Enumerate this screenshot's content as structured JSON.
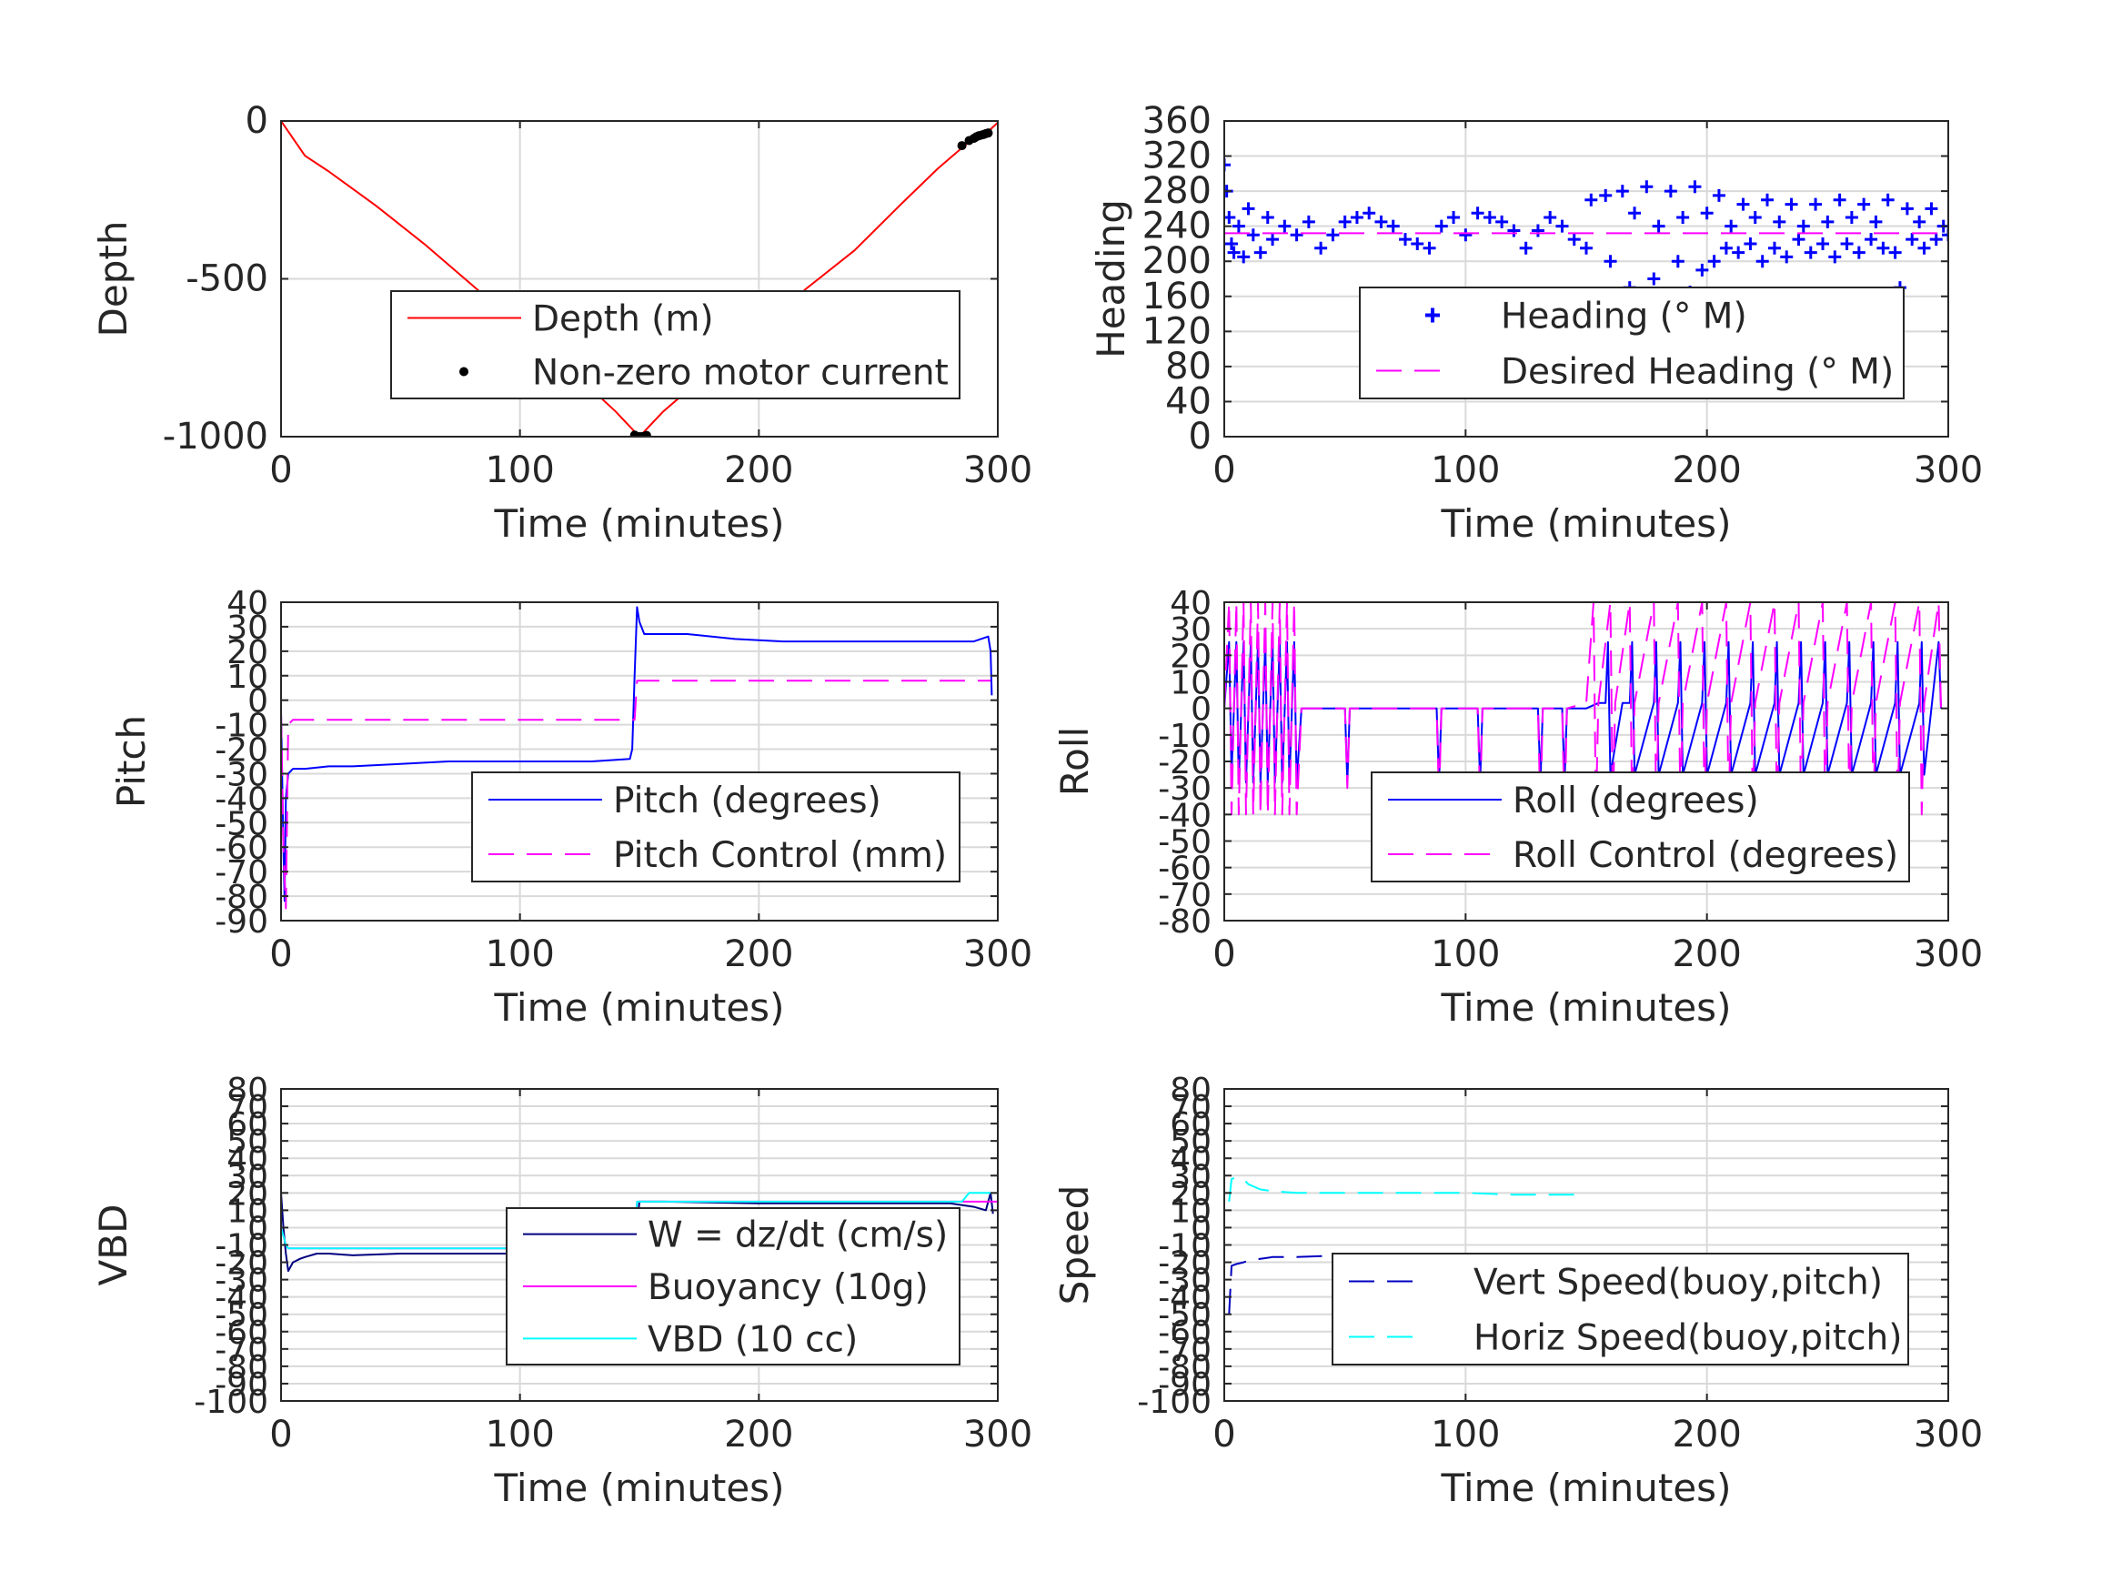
{
  "figure": {
    "colors": {
      "red": "#ff0000",
      "black": "#000000",
      "blue": "#0000ff",
      "magenta": "#ff00ff",
      "cyan": "#00ffff",
      "grid": "#d9d9d9",
      "axis": "#262626"
    }
  },
  "chart_data": [
    {
      "id": "depth",
      "type": "line",
      "xlabel": "Time (minutes)",
      "ylabel": "Depth",
      "xlim": [
        0,
        300
      ],
      "ylim": [
        -1000,
        0
      ],
      "xticks": [
        0,
        100,
        200,
        300
      ],
      "yticks": [
        -1000,
        -500,
        0
      ],
      "grid": true,
      "legend_position": "center-right",
      "series": [
        {
          "name": "Depth (m)",
          "style": "line",
          "color": "#ff0000",
          "x": [
            0,
            5,
            10,
            20,
            40,
            60,
            80,
            100,
            120,
            140,
            150,
            160,
            180,
            200,
            220,
            240,
            260,
            275,
            285,
            290,
            295,
            300
          ],
          "y": [
            0,
            -55,
            -110,
            -160,
            -270,
            -390,
            -520,
            -650,
            -780,
            -920,
            -1000,
            -920,
            -790,
            -660,
            -530,
            -410,
            -260,
            -150,
            -85,
            -55,
            -40,
            -5
          ]
        },
        {
          "name": "Non-zero motor current",
          "style": "dots",
          "color": "#000000",
          "x": [
            148,
            149,
            150,
            151,
            152,
            153,
            285,
            288,
            290,
            291,
            292,
            293,
            294,
            295,
            296
          ],
          "y": [
            -995,
            -1000,
            -1000,
            -1000,
            -999,
            -996,
            -78,
            -62,
            -55,
            -50,
            -47,
            -45,
            -43,
            -40,
            -38
          ]
        }
      ]
    },
    {
      "id": "heading",
      "type": "scatter",
      "xlabel": "Time (minutes)",
      "ylabel": "Heading",
      "xlim": [
        0,
        300
      ],
      "ylim": [
        0,
        360
      ],
      "xticks": [
        0,
        100,
        200,
        300
      ],
      "yticks": [
        0,
        40,
        80,
        120,
        160,
        200,
        240,
        280,
        320,
        360
      ],
      "grid": true,
      "legend_position": "lower-right",
      "series": [
        {
          "name": "Heading (° M)",
          "style": "plus",
          "color": "#0000ff",
          "x": [
            0,
            1,
            2,
            3,
            4,
            6,
            8,
            10,
            12,
            15,
            18,
            20,
            25,
            30,
            35,
            40,
            45,
            50,
            55,
            60,
            65,
            70,
            75,
            80,
            85,
            90,
            95,
            100,
            105,
            110,
            115,
            120,
            125,
            130,
            135,
            140,
            145,
            150,
            152,
            155,
            158,
            160,
            163,
            165,
            168,
            170,
            173,
            175,
            178,
            180,
            183,
            185,
            188,
            190,
            193,
            195,
            198,
            200,
            203,
            205,
            208,
            210,
            213,
            215,
            218,
            220,
            223,
            225,
            228,
            230,
            233,
            235,
            238,
            240,
            243,
            245,
            248,
            250,
            253,
            255,
            258,
            260,
            263,
            265,
            268,
            270,
            273,
            275,
            278,
            280,
            283,
            285,
            288,
            290,
            293,
            295,
            298,
            300
          ],
          "y": [
            310,
            280,
            250,
            220,
            210,
            240,
            205,
            260,
            230,
            210,
            250,
            225,
            240,
            230,
            245,
            215,
            230,
            245,
            250,
            255,
            245,
            240,
            225,
            220,
            215,
            240,
            250,
            230,
            255,
            250,
            245,
            235,
            215,
            235,
            250,
            240,
            225,
            215,
            270,
            160,
            275,
            200,
            150,
            280,
            170,
            255,
            155,
            285,
            180,
            240,
            160,
            280,
            200,
            250,
            165,
            285,
            190,
            255,
            200,
            275,
            215,
            240,
            210,
            265,
            220,
            250,
            200,
            270,
            215,
            245,
            205,
            265,
            225,
            240,
            210,
            265,
            220,
            245,
            205,
            270,
            220,
            250,
            210,
            265,
            225,
            245,
            215,
            270,
            210,
            170,
            260,
            225,
            245,
            215,
            260,
            225,
            240,
            230
          ]
        },
        {
          "name": "Desired Heading (° M)",
          "style": "dashed",
          "color": "#ff00ff",
          "x": [
            0,
            300
          ],
          "y": [
            232,
            232
          ]
        }
      ]
    },
    {
      "id": "pitch",
      "type": "line",
      "xlabel": "Time (minutes)",
      "ylabel": "Pitch",
      "xlim": [
        0,
        300
      ],
      "ylim": [
        -90,
        40
      ],
      "xticks": [
        0,
        100,
        200,
        300
      ],
      "yticks": [
        -90,
        -80,
        -70,
        -60,
        -50,
        -40,
        -30,
        -20,
        -10,
        0,
        10,
        20,
        30,
        40
      ],
      "grid": true,
      "legend_position": "lower-right",
      "series": [
        {
          "name": "Pitch (degrees)",
          "style": "line",
          "color": "#0000ff",
          "x": [
            0,
            1,
            1.5,
            2,
            3,
            5,
            10,
            20,
            30,
            50,
            70,
            90,
            110,
            130,
            146,
            147,
            148,
            149,
            150,
            152,
            155,
            170,
            190,
            210,
            230,
            250,
            270,
            290,
            296,
            297,
            297.5
          ],
          "y": [
            -5,
            -60,
            -82,
            -40,
            -30,
            -28,
            -28,
            -27,
            -27,
            -26,
            -25,
            -25,
            -25,
            -25,
            -24,
            -20,
            10,
            38,
            32,
            27,
            27,
            27,
            25,
            24,
            24,
            24,
            24,
            24,
            26,
            20,
            2
          ]
        },
        {
          "name": "Pitch Control (mm)",
          "style": "dashed",
          "color": "#ff00ff",
          "x": [
            0,
            1,
            2,
            3,
            5,
            147,
            148,
            149,
            297
          ],
          "y": [
            -5,
            -60,
            -85,
            -10,
            -8,
            -8,
            -8,
            8,
            8
          ]
        }
      ]
    },
    {
      "id": "roll",
      "type": "line",
      "xlabel": "Time (minutes)",
      "ylabel": "Roll",
      "xlim": [
        0,
        300
      ],
      "ylim": [
        -80,
        40
      ],
      "xticks": [
        0,
        100,
        200,
        300
      ],
      "yticks": [
        -80,
        -70,
        -60,
        -50,
        -40,
        -30,
        -20,
        -10,
        0,
        10,
        20,
        30,
        40
      ],
      "grid": true,
      "legend_position": "lower-right",
      "series": [
        {
          "name": "Roll (degrees)",
          "style": "line",
          "color": "#0000ff",
          "x": [
            0,
            2,
            3,
            5,
            6,
            8,
            9,
            11,
            12,
            14,
            15,
            17,
            18,
            20,
            21,
            23,
            24,
            26,
            27,
            29,
            30,
            32,
            50,
            51,
            52,
            88,
            89,
            90,
            105,
            106,
            107,
            130,
            131,
            132,
            140,
            141,
            142,
            150,
            155,
            158,
            159,
            160,
            165,
            168,
            169,
            170,
            178,
            179,
            180,
            188,
            189,
            190,
            198,
            199,
            200,
            208,
            209,
            210,
            218,
            219,
            220,
            228,
            229,
            230,
            238,
            239,
            240,
            248,
            249,
            250,
            258,
            259,
            260,
            268,
            269,
            270,
            278,
            279,
            280,
            288,
            289,
            290,
            296,
            297
          ],
          "y": [
            0,
            25,
            -25,
            25,
            -28,
            25,
            -28,
            25,
            -28,
            25,
            -28,
            25,
            -28,
            25,
            -28,
            25,
            -28,
            25,
            -28,
            25,
            -28,
            0,
            0,
            -28,
            0,
            0,
            -28,
            0,
            0,
            -28,
            0,
            0,
            -28,
            0,
            0,
            -28,
            0,
            0,
            2,
            2,
            25,
            -25,
            2,
            2,
            25,
            -25,
            2,
            25,
            -25,
            2,
            25,
            -25,
            2,
            25,
            -25,
            2,
            25,
            -25,
            2,
            25,
            -25,
            2,
            25,
            -25,
            2,
            25,
            -25,
            2,
            25,
            -25,
            2,
            25,
            -25,
            2,
            25,
            -25,
            2,
            25,
            -25,
            2,
            25,
            -25,
            25,
            0
          ]
        },
        {
          "name": "Roll Control (degrees)",
          "style": "dashed",
          "color": "#ff00ff",
          "x": [
            0,
            2,
            3,
            5,
            6,
            8,
            9,
            11,
            12,
            14,
            15,
            17,
            18,
            20,
            21,
            23,
            24,
            26,
            27,
            29,
            30,
            32,
            50,
            51,
            52,
            88,
            89,
            90,
            105,
            106,
            107,
            130,
            131,
            132,
            140,
            141,
            142,
            150,
            153,
            154,
            155,
            160,
            161,
            162,
            168,
            169,
            170,
            178,
            179,
            180,
            188,
            189,
            190,
            198,
            199,
            200,
            208,
            209,
            210,
            218,
            219,
            220,
            228,
            229,
            230,
            238,
            239,
            240,
            248,
            249,
            250,
            258,
            259,
            260,
            268,
            269,
            270,
            278,
            279,
            280,
            288,
            289,
            290,
            296,
            297
          ],
          "y": [
            0,
            40,
            -40,
            40,
            -40,
            40,
            -40,
            40,
            -40,
            40,
            -40,
            40,
            -40,
            40,
            -40,
            40,
            -40,
            40,
            -40,
            40,
            -40,
            0,
            0,
            -30,
            0,
            0,
            -35,
            0,
            0,
            -35,
            0,
            0,
            -40,
            0,
            0,
            -40,
            0,
            2,
            40,
            -40,
            2,
            40,
            -40,
            2,
            40,
            -40,
            2,
            40,
            -40,
            2,
            40,
            -40,
            2,
            40,
            -40,
            2,
            40,
            -40,
            2,
            40,
            -40,
            2,
            40,
            -40,
            2,
            40,
            -40,
            2,
            40,
            -40,
            2,
            40,
            -40,
            2,
            40,
            -40,
            2,
            40,
            -40,
            2,
            40,
            -40,
            2,
            40,
            0
          ]
        }
      ]
    },
    {
      "id": "vbd",
      "type": "line",
      "xlabel": "Time (minutes)",
      "ylabel": "VBD",
      "xlim": [
        0,
        300
      ],
      "ylim": [
        -100,
        80
      ],
      "xticks": [
        0,
        100,
        200,
        300
      ],
      "yticks": [
        -100,
        -90,
        -80,
        -70,
        -60,
        -50,
        -40,
        -30,
        -20,
        -10,
        0,
        10,
        20,
        30,
        40,
        50,
        60,
        70,
        80
      ],
      "grid": true,
      "legend_position": "lower-right",
      "series": [
        {
          "name": "W = dz/dt (cm/s)",
          "style": "line",
          "color": "#000080",
          "x": [
            0,
            1,
            2,
            3,
            5,
            8,
            10,
            15,
            20,
            30,
            50,
            70,
            100,
            120,
            140,
            148,
            149,
            150,
            152,
            160,
            200,
            250,
            280,
            290,
            295,
            297,
            298
          ],
          "y": [
            20,
            0,
            -15,
            -25,
            -20,
            -18,
            -17,
            -15,
            -15,
            -16,
            -15,
            -15,
            -15,
            -15,
            -15,
            -15,
            0,
            15,
            15,
            15,
            14,
            14,
            14,
            12,
            10,
            20,
            8
          ]
        },
        {
          "name": "Buoyancy (10g)",
          "style": "line",
          "color": "#ff00ff",
          "x": [
            0,
            2,
            3,
            5,
            148,
            149,
            150,
            300
          ],
          "y": [
            0,
            -10,
            -12,
            -12,
            -12,
            15,
            15,
            15
          ]
        },
        {
          "name": "VBD (10 cc)",
          "style": "line",
          "color": "#00ffff",
          "x": [
            0,
            2,
            3,
            5,
            148,
            149,
            150,
            285,
            288,
            297
          ],
          "y": [
            0,
            -10,
            -12,
            -12,
            -12,
            15,
            15,
            15,
            20,
            20
          ]
        }
      ]
    },
    {
      "id": "speed",
      "type": "line",
      "xlabel": "Time (minutes)",
      "ylabel": "Speed",
      "xlim": [
        0,
        300
      ],
      "ylim": [
        -100,
        80
      ],
      "xticks": [
        0,
        100,
        200,
        300
      ],
      "yticks": [
        -100,
        -90,
        -80,
        -70,
        -60,
        -50,
        -40,
        -30,
        -20,
        -10,
        0,
        10,
        20,
        30,
        40,
        50,
        60,
        70,
        80
      ],
      "grid": true,
      "legend_position": "lower-right",
      "series": [
        {
          "name": "Vert Speed(buoy,pitch)",
          "style": "dashed",
          "color": "#0000c0",
          "x": [
            2,
            3,
            5,
            8,
            10,
            15,
            20,
            30,
            50,
            70,
            100,
            120,
            148
          ],
          "y": [
            -50,
            -22,
            -21,
            -20,
            -19,
            -18,
            -17,
            -17,
            -16,
            -16,
            -16,
            -15,
            -15
          ]
        },
        {
          "name": "Horiz Speed(buoy,pitch)",
          "style": "dashed",
          "color": "#00ffff",
          "x": [
            2,
            3,
            5,
            8,
            10,
            15,
            20,
            30,
            50,
            70,
            100,
            120,
            148
          ],
          "y": [
            15,
            28,
            29,
            28,
            25,
            22,
            21,
            20,
            20,
            20,
            20,
            19,
            19
          ]
        }
      ]
    }
  ]
}
